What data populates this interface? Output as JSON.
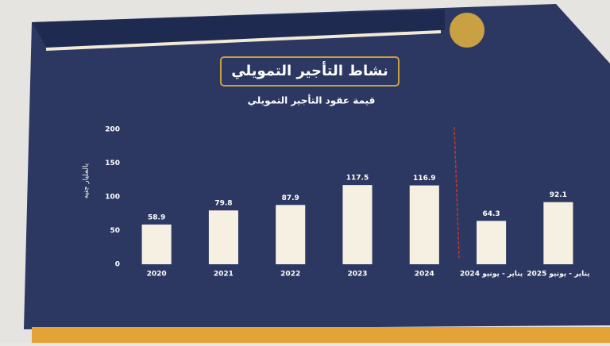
{
  "chart_data": {
    "type": "bar",
    "title": "نشاط التأجير التمويلي",
    "subtitle": "قيمة عقود التأجير التمويلي",
    "y_label": "بالمليار جنيه",
    "categories": [
      "2020",
      "2021",
      "2022",
      "2023",
      "2024",
      "يناير - يونيو 2024",
      "يناير - يونيو 2025"
    ],
    "values": [
      58.9,
      79.8,
      87.9,
      117.5,
      116.9,
      64.3,
      92.1
    ],
    "color": "#f6f0e2",
    "ylim": [
      0,
      200
    ],
    "yticks": [
      0,
      50,
      100,
      150,
      200
    ],
    "grid": false
  }
}
